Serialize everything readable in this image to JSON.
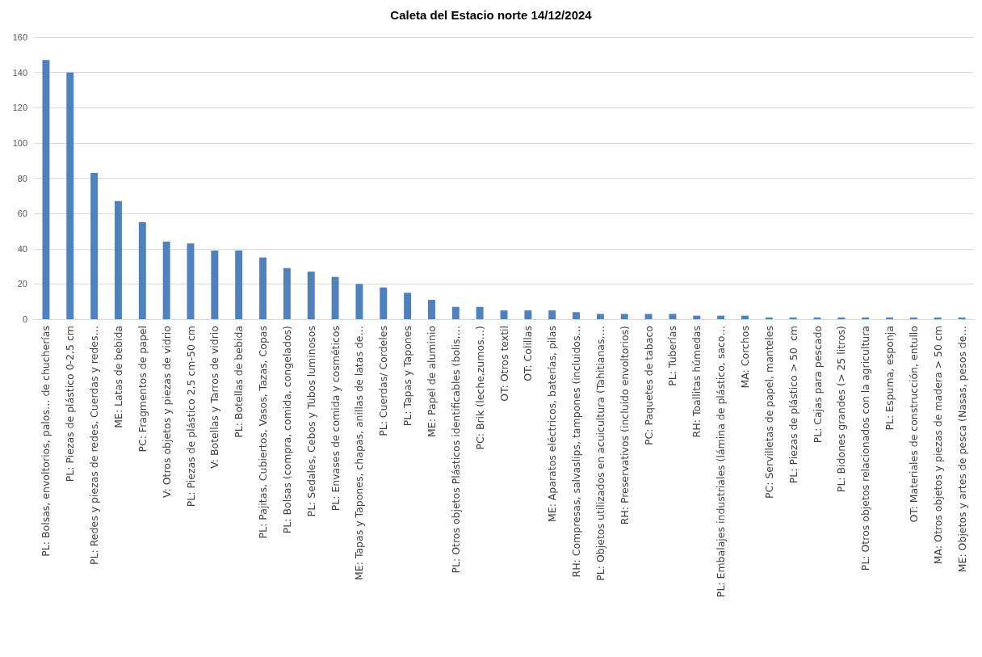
{
  "chart_data": {
    "type": "bar",
    "title": "Caleta del Estacio norte 14/12/2024",
    "categories": [
      "PL: Bolsas, envoltorios, palos… de chucherías",
      "PL: Piezas de plástico 0-2,5 cm",
      "PL: Redes y piezas de redes, Cuerdas y redes…",
      "ME: Latas de bebida",
      "PC: Fragmentos de papel",
      "V: Otros objetos y piezas de vidrio",
      "PL: Piezas de plástico 2,5 cm-50 cm",
      "V: Botellas y Tarros de vidrio",
      "PL: Botellas de bebida",
      "PL: Pajitas, Cubiertos, Vasos, Tazas, Copas",
      "PL: Bolsas (compra, comida, congelados)",
      "PL: Sedales, Cebos y Tubos luminosos",
      "PL: Envases de comida y cosméticos",
      "ME: Tapas y Tapones, chapas, anillas de latas de…",
      "PL: Cuerdas/ Cordeles",
      "PL: Tapas y Tapones",
      "ME: Papel de aluminio",
      "PL: Otros objetos Plásticos identificables (bolis,…",
      "PC: Brik (leche,zumos…)",
      "OT: Otros textil",
      "OT: Colillas",
      "ME: Aparatos eléctricos, baterías, pilas",
      "RH: Compresas, salvaslips, tampones (incluidos…",
      "PL: Objetos utilizados en acuicultura (Tahitianas,…",
      "RH: Preservativos (incluido envoltorios)",
      "PC: Paquetes de tabaco",
      "PL: Tuberías",
      "RH: Toallitas húmedas",
      "PL: Embalajes industriales (lámina de plástico, saco…",
      "MA: Corchos",
      "PC: Servilletas de papel, manteles",
      "PL: Piezas de plástico > 50  cm",
      "PL: Cajas para pescado",
      "PL: Bidones grandes (> 25 litros)",
      "PL: Otros objetos relacionados con la agricultura",
      "PL: Espuma, esponja",
      "OT: Materiales de construcción, entullo",
      "MA: Otros objetos y piezas de madera > 50 cm",
      "ME: Objetos y artes de pesca (Nasas, pesos de…"
    ],
    "values": [
      147,
      140,
      83,
      67,
      55,
      44,
      43,
      39,
      39,
      35,
      29,
      27,
      24,
      20,
      18,
      15,
      11,
      7,
      7,
      5,
      5,
      5,
      4,
      3,
      3,
      3,
      3,
      2,
      2,
      2,
      1,
      1,
      1,
      1,
      1,
      1,
      1,
      1,
      1
    ],
    "color": "#4f81bd",
    "ylim": [
      0,
      160
    ],
    "yticks": [
      0,
      20,
      40,
      60,
      80,
      100,
      120,
      140,
      160
    ],
    "grid": "y"
  }
}
